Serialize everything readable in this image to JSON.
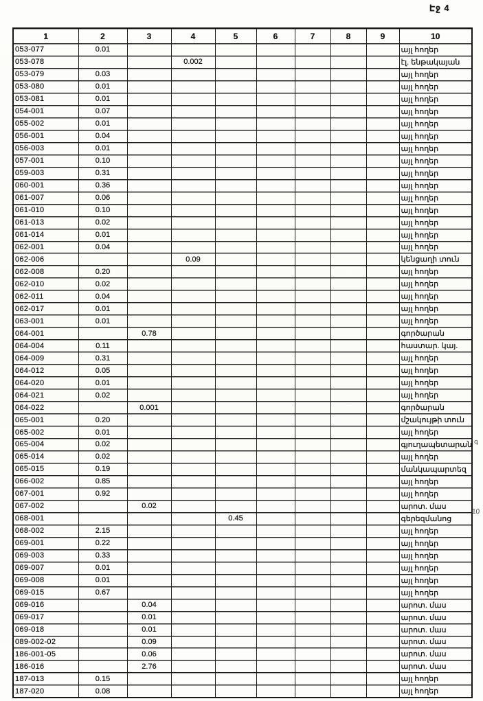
{
  "page_label": "Էջ 4",
  "table": {
    "headers": [
      "1",
      "2",
      "3",
      "4",
      "5",
      "6",
      "7",
      "8",
      "9",
      "10"
    ],
    "rows": [
      [
        "053-077",
        "0.01",
        "",
        "",
        "",
        "",
        "",
        "",
        "",
        "այլ հողեր"
      ],
      [
        "053-078",
        "",
        "",
        "0.002",
        "",
        "",
        "",
        "",
        "",
        "էլ. ենթակայան"
      ],
      [
        "053-079",
        "0.03",
        "",
        "",
        "",
        "",
        "",
        "",
        "",
        "այլ հողեր"
      ],
      [
        "053-080",
        "0.01",
        "",
        "",
        "",
        "",
        "",
        "",
        "",
        "այլ հողեր"
      ],
      [
        "053-081",
        "0.01",
        "",
        "",
        "",
        "",
        "",
        "",
        "",
        "այլ հողեր"
      ],
      [
        "054-001",
        "0.07",
        "",
        "",
        "",
        "",
        "",
        "",
        "",
        "այլ հողեր"
      ],
      [
        "055-002",
        "0.01",
        "",
        "",
        "",
        "",
        "",
        "",
        "",
        "այլ հողեր"
      ],
      [
        "056-001",
        "0.04",
        "",
        "",
        "",
        "",
        "",
        "",
        "",
        "այլ հողեր"
      ],
      [
        "056-003",
        "0.01",
        "",
        "",
        "",
        "",
        "",
        "",
        "",
        "այլ հողեր"
      ],
      [
        "057-001",
        "0.10",
        "",
        "",
        "",
        "",
        "",
        "",
        "",
        "այլ հողեր"
      ],
      [
        "059-003",
        "0.31",
        "",
        "",
        "",
        "",
        "",
        "",
        "",
        "այլ հողեր"
      ],
      [
        "060-001",
        "0.36",
        "",
        "",
        "",
        "",
        "",
        "",
        "",
        "այլ հողեր"
      ],
      [
        "061-007",
        "0.06",
        "",
        "",
        "",
        "",
        "",
        "",
        "",
        "այլ հողեր"
      ],
      [
        "061-010",
        "0.10",
        "",
        "",
        "",
        "",
        "",
        "",
        "",
        "այլ հողեր"
      ],
      [
        "061-013",
        "0.02",
        "",
        "",
        "",
        "",
        "",
        "",
        "",
        "այլ հողեր"
      ],
      [
        "061-014",
        "0.01",
        "",
        "",
        "",
        "",
        "",
        "",
        "",
        "այլ հողեր"
      ],
      [
        "062-001",
        "0.04",
        "",
        "",
        "",
        "",
        "",
        "",
        "",
        "այլ հողեր"
      ],
      [
        "062-006",
        "",
        "",
        "0.09",
        "",
        "",
        "",
        "",
        "",
        "կենցաղի տուն"
      ],
      [
        "062-008",
        "0.20",
        "",
        "",
        "",
        "",
        "",
        "",
        "",
        "այլ հողեր"
      ],
      [
        "062-010",
        "0.02",
        "",
        "",
        "",
        "",
        "",
        "",
        "",
        "այլ հողեր"
      ],
      [
        "062-011",
        "0.04",
        "",
        "",
        "",
        "",
        "",
        "",
        "",
        "այլ հողեր"
      ],
      [
        "062-017",
        "0.01",
        "",
        "",
        "",
        "",
        "",
        "",
        "",
        "այլ հողեր"
      ],
      [
        "063-001",
        "0.01",
        "",
        "",
        "",
        "",
        "",
        "",
        "",
        "այլ հողեր"
      ],
      [
        "064-001",
        "",
        "0.78",
        "",
        "",
        "",
        "",
        "",
        "",
        "գործարան"
      ],
      [
        "064-004",
        "0.11",
        "",
        "",
        "",
        "",
        "",
        "",
        "",
        "հաստար. կայ."
      ],
      [
        "064-009",
        "0.31",
        "",
        "",
        "",
        "",
        "",
        "",
        "",
        "այլ հողեր"
      ],
      [
        "064-012",
        "0.05",
        "",
        "",
        "",
        "",
        "",
        "",
        "",
        "այլ հողեր"
      ],
      [
        "064-020",
        "0.01",
        "",
        "",
        "",
        "",
        "",
        "",
        "",
        "այլ հողեր"
      ],
      [
        "064-021",
        "0.02",
        "",
        "",
        "",
        "",
        "",
        "",
        "",
        "այլ հողեր"
      ],
      [
        "064-022",
        "",
        "0.001",
        "",
        "",
        "",
        "",
        "",
        "",
        "գործարան"
      ],
      [
        "065-001",
        "0.20",
        "",
        "",
        "",
        "",
        "",
        "",
        "",
        "մշակույթի տուն"
      ],
      [
        "065-002",
        "0.01",
        "",
        "",
        "",
        "",
        "",
        "",
        "",
        "այլ հողեր"
      ],
      [
        "065-004",
        "0.02",
        "",
        "",
        "",
        "",
        "",
        "",
        "",
        "գյուղապետարան"
      ],
      [
        "065-014",
        "0.02",
        "",
        "",
        "",
        "",
        "",
        "",
        "",
        "այլ հողեր"
      ],
      [
        "065-015",
        "0.19",
        "",
        "",
        "",
        "",
        "",
        "",
        "",
        "մանկապարտեզ"
      ],
      [
        "066-002",
        "0.85",
        "",
        "",
        "",
        "",
        "",
        "",
        "",
        "այլ հողեր"
      ],
      [
        "067-001",
        "0.92",
        "",
        "",
        "",
        "",
        "",
        "",
        "",
        "այլ հողեր"
      ],
      [
        "067-002",
        "",
        "0.02",
        "",
        "",
        "",
        "",
        "",
        "",
        "արոտ. մաս"
      ],
      [
        "068-001",
        "",
        "",
        "",
        "0.45",
        "",
        "",
        "",
        "",
        "գերեզմանոց"
      ],
      [
        "068-002",
        "2.15",
        "",
        "",
        "",
        "",
        "",
        "",
        "",
        "այլ հողեր"
      ],
      [
        "069-001",
        "0.22",
        "",
        "",
        "",
        "",
        "",
        "",
        "",
        "այլ հողեր"
      ],
      [
        "069-003",
        "0.33",
        "",
        "",
        "",
        "",
        "",
        "",
        "",
        "այլ հողեր"
      ],
      [
        "069-007",
        "0.01",
        "",
        "",
        "",
        "",
        "",
        "",
        "",
        "այլ հողեր"
      ],
      [
        "069-008",
        "0.01",
        "",
        "",
        "",
        "",
        "",
        "",
        "",
        "այլ հողեր"
      ],
      [
        "069-015",
        "0.67",
        "",
        "",
        "",
        "",
        "",
        "",
        "",
        "այլ հողեր"
      ],
      [
        "069-016",
        "",
        "0.04",
        "",
        "",
        "",
        "",
        "",
        "",
        "արոտ. մաս"
      ],
      [
        "069-017",
        "",
        "0.01",
        "",
        "",
        "",
        "",
        "",
        "",
        "արոտ. մաս"
      ],
      [
        "069-018",
        "",
        "0.01",
        "",
        "",
        "",
        "",
        "",
        "",
        "արոտ. մաս"
      ],
      [
        "089-002-02",
        "",
        "0.09",
        "",
        "",
        "",
        "",
        "",
        "",
        "արոտ. մաս"
      ],
      [
        "186-001-05",
        "",
        "0.06",
        "",
        "",
        "",
        "",
        "",
        "",
        "արոտ. մաս"
      ],
      [
        "186-016",
        "",
        "2.76",
        "",
        "",
        "",
        "",
        "",
        "",
        "արոտ. մաս"
      ],
      [
        "187-013",
        "0.15",
        "",
        "",
        "",
        "",
        "",
        "",
        "",
        "այլ հողեր"
      ],
      [
        "187-020",
        "0.08",
        "",
        "",
        "",
        "",
        "",
        "",
        "",
        "այլ հողեր"
      ]
    ]
  },
  "margin_notes": [
    {
      "text": "գ"
    },
    {
      "text": "10"
    }
  ]
}
